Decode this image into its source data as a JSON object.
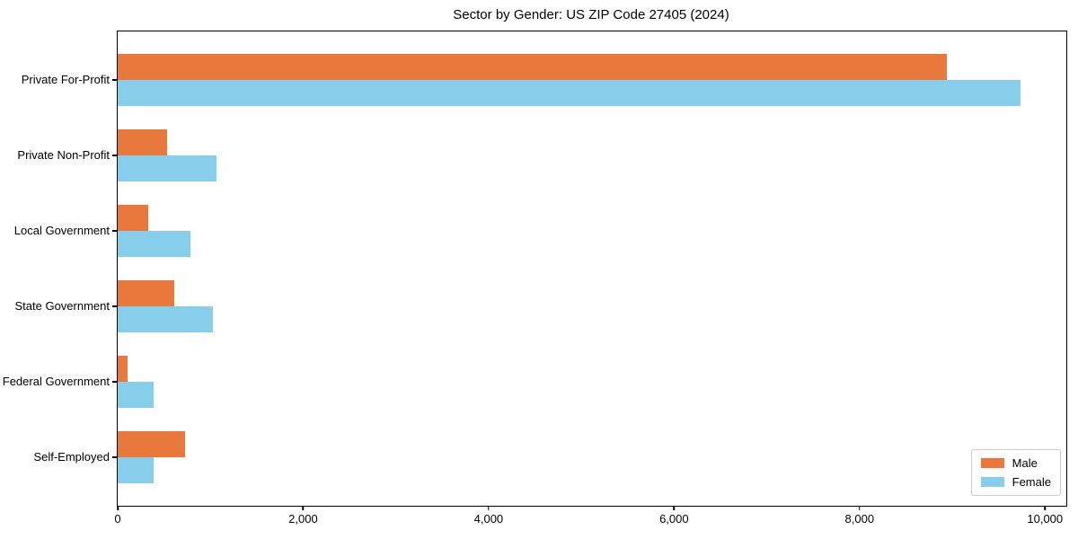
{
  "title": "Sector by Gender: US ZIP Code 27405 (2024)",
  "chart_data": {
    "type": "bar",
    "orientation": "horizontal",
    "title": "Sector by Gender: US ZIP Code 27405 (2024)",
    "categories": [
      "Private For-Profit",
      "Private Non-Profit",
      "Local Government",
      "State Government",
      "Federal Government",
      "Self-Employed"
    ],
    "series": [
      {
        "name": "Male",
        "color": "#e8783c",
        "values": [
          8940,
          530,
          330,
          610,
          105,
          725
        ]
      },
      {
        "name": "Female",
        "color": "#87ceeb",
        "values": [
          9740,
          1070,
          780,
          1030,
          390,
          390
        ]
      }
    ],
    "xlabel": "",
    "ylabel": "",
    "xlim": [
      0,
      10230
    ],
    "x_ticks": [
      {
        "value": 0,
        "label": "0"
      },
      {
        "value": 2000,
        "label": "2,000"
      },
      {
        "value": 4000,
        "label": "4,000"
      },
      {
        "value": 6000,
        "label": "6,000"
      },
      {
        "value": 8000,
        "label": "8,000"
      },
      {
        "value": 10000,
        "label": "10,000"
      }
    ],
    "grid": false,
    "legend_position": "lower right"
  }
}
